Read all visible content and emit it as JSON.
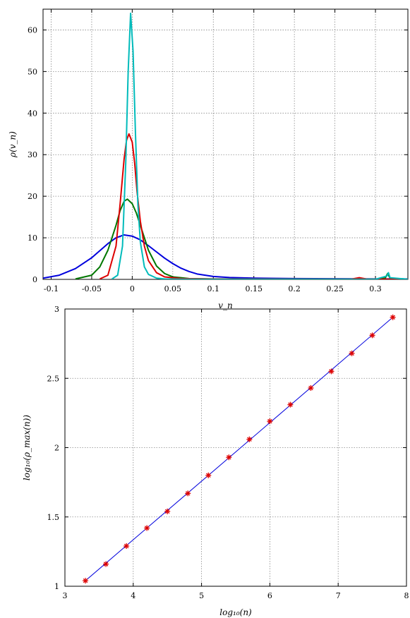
{
  "chart_data": [
    {
      "type": "line",
      "title": "",
      "xlabel": "v_n",
      "ylabel": "ρ(v_n)",
      "xlim": [
        -0.11,
        0.34
      ],
      "ylim": [
        0,
        65
      ],
      "xticks": [
        -0.1,
        -0.05,
        0,
        0.05,
        0.1,
        0.15,
        0.2,
        0.25,
        0.3
      ],
      "xtick_labels": [
        "-0.1",
        "-0.05",
        "0",
        "0.05",
        "0.1",
        "0.15",
        "0.2",
        "0.25",
        "0.3"
      ],
      "yticks": [
        0,
        10,
        20,
        30,
        40,
        50,
        60
      ],
      "ytick_labels": [
        "0",
        "10",
        "20",
        "30",
        "40",
        "50",
        "60"
      ],
      "grid": true,
      "series": [
        {
          "color": "#0000dd",
          "peak_x": -0.01,
          "peak_y": 10.7,
          "x": [
            -0.11,
            -0.09,
            -0.07,
            -0.05,
            -0.04,
            -0.03,
            -0.02,
            -0.01,
            0,
            0.01,
            0.02,
            0.03,
            0.04,
            0.05,
            0.06,
            0.07,
            0.08,
            0.1,
            0.12,
            0.15,
            0.2,
            0.25,
            0.3,
            0.34
          ],
          "y": [
            0.3,
            1.0,
            2.6,
            5.2,
            6.9,
            8.6,
            10.0,
            10.7,
            10.4,
            9.5,
            8.1,
            6.6,
            5.1,
            3.8,
            2.7,
            1.9,
            1.3,
            0.7,
            0.45,
            0.3,
            0.2,
            0.15,
            0.1,
            0.1
          ]
        },
        {
          "color": "#007700",
          "peak_x": -0.006,
          "peak_y": 19.3,
          "x": [
            -0.07,
            -0.05,
            -0.04,
            -0.03,
            -0.02,
            -0.015,
            -0.01,
            -0.006,
            0,
            0.005,
            0.01,
            0.015,
            0.02,
            0.03,
            0.04,
            0.05,
            0.07,
            0.1,
            0.15,
            0.2,
            0.25,
            0.3,
            0.312,
            0.315,
            0.318,
            0.34
          ],
          "y": [
            0.1,
            1.0,
            3.0,
            7.0,
            13.0,
            16.5,
            18.8,
            19.3,
            18.2,
            16.0,
            13.0,
            10.0,
            7.0,
            3.2,
            1.4,
            0.6,
            0.2,
            0.1,
            0.08,
            0.06,
            0.05,
            0.05,
            0.3,
            1.4,
            0.3,
            0.05
          ]
        },
        {
          "color": "#dd0000",
          "peak_x": -0.004,
          "peak_y": 35,
          "x": [
            -0.04,
            -0.03,
            -0.02,
            -0.015,
            -0.01,
            -0.007,
            -0.004,
            0,
            0.003,
            0.006,
            0.01,
            0.015,
            0.02,
            0.03,
            0.04,
            0.06,
            0.1,
            0.2,
            0.27,
            0.28,
            0.29,
            0.34
          ],
          "y": [
            0.1,
            1.0,
            8.0,
            18.0,
            29.0,
            33.5,
            35.0,
            33.0,
            28.0,
            21.0,
            14.0,
            8.0,
            4.5,
            1.6,
            0.6,
            0.2,
            0.08,
            0.05,
            0.05,
            0.4,
            0.05,
            0.05
          ]
        },
        {
          "color": "#00bbbb",
          "peak_x": -0.002,
          "peak_y": 64,
          "x": [
            -0.025,
            -0.018,
            -0.012,
            -0.008,
            -0.005,
            -0.002,
            0.001,
            0.004,
            0.007,
            0.01,
            0.015,
            0.02,
            0.03,
            0.04,
            0.06,
            0.1,
            0.2,
            0.3,
            0.314,
            0.316,
            0.318,
            0.34
          ],
          "y": [
            0.1,
            1.0,
            8.0,
            28.0,
            50.0,
            64.0,
            55.0,
            35.0,
            18.0,
            9.0,
            3.0,
            1.2,
            0.3,
            0.1,
            0.05,
            0.03,
            0.03,
            0.03,
            0.8,
            1.6,
            0.4,
            0.03
          ]
        }
      ]
    },
    {
      "type": "scatter",
      "title": "",
      "xlabel": "log₁₀(n)",
      "ylabel": "log₁₀(ρ_max(n))",
      "xlim": [
        3,
        8
      ],
      "ylim": [
        1,
        3
      ],
      "xticks": [
        3,
        4,
        5,
        6,
        7,
        8
      ],
      "xtick_labels": [
        "3",
        "4",
        "5",
        "6",
        "7",
        "8"
      ],
      "yticks": [
        1,
        1.5,
        2,
        2.5,
        3
      ],
      "ytick_labels": [
        "1",
        "1.5",
        "2",
        "2.5",
        "3"
      ],
      "grid": true,
      "series": [
        {
          "color": "#dd0000",
          "marker": "asterisk",
          "x": [
            3.3,
            3.6,
            3.9,
            4.2,
            4.5,
            4.8,
            5.1,
            5.4,
            5.7,
            6.0,
            6.3,
            6.6,
            6.9,
            7.2,
            7.5,
            7.8
          ],
          "y": [
            1.04,
            1.16,
            1.29,
            1.42,
            1.54,
            1.67,
            1.8,
            1.93,
            2.06,
            2.19,
            2.31,
            2.43,
            2.55,
            2.68,
            2.81,
            2.94
          ]
        },
        {
          "color": "#0000dd",
          "marker": "line",
          "x": [
            3.3,
            7.8
          ],
          "y": [
            1.04,
            2.94
          ]
        }
      ]
    }
  ]
}
